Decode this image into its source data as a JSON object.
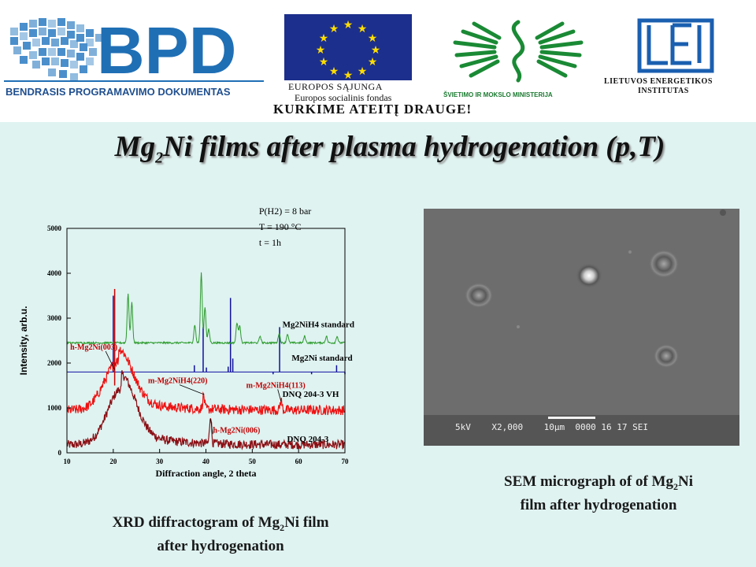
{
  "banner": {
    "bpd_logo_text": "BPD",
    "bpd_subtitle": "BENDRASIS PROGRAMAVIMO DOKUMENTAS",
    "eu_label_1": "EUROPOS SĄJUNGA",
    "eu_label_2": "Europos socialinis fondas",
    "eu_slogan": "KURKIME ATEITĮ DRAUGE!",
    "ministry_label": "ŠVIETIMO IR MOKSLO MINISTERIJA",
    "lei_label_1": "LIETUVOS ENERGETIKOS",
    "lei_label_2": "INSTITUTAS"
  },
  "slide": {
    "title_a": "Mg",
    "title_sub": "2",
    "title_b": "Ni films after plasma hydrogenation (p,T)",
    "xrd_caption_a": "XRD diffractogram of Mg",
    "xrd_caption_sub": "2",
    "xrd_caption_b": "Ni film",
    "xrd_caption_line2": "after hydrogenation",
    "sem_caption_a": "SEM micrograph of of Mg",
    "sem_caption_sub": "2",
    "sem_caption_b": "Ni",
    "sem_caption_line2": "film after hydrogenation",
    "sem_overlay": "5kV    X2,000    10μm  0000 16 17 SEI"
  },
  "colors": {
    "background": "#dff3f1",
    "blue_logo": "#1f6fb5",
    "green_logo": "#1a8a35",
    "eu_flag": "#1c2f8c",
    "eu_star": "#ffdd00",
    "red_series": "#ee1111",
    "darkred_series": "#8b0f14",
    "green_series": "#2a9a2a",
    "blue_series": "#1010a0"
  },
  "chart_data": {
    "type": "line",
    "xlabel": "Diffraction angle, 2 theta",
    "ylabel": "Intensity, arb.u.",
    "xlim": [
      10,
      70
    ],
    "ylim": [
      0,
      5000
    ],
    "xticks": [
      10,
      20,
      30,
      40,
      50,
      60,
      70
    ],
    "yticks": [
      0,
      1000,
      2000,
      3000,
      4000,
      5000
    ],
    "conditions": [
      "P(H2) = 8 bar",
      "T = 190 °C",
      "t = 1h"
    ],
    "series": [
      {
        "name": "Mg2NiH4 standard",
        "baseline": 2450,
        "peaks": [
          [
            23.2,
            1100
          ],
          [
            24.0,
            900
          ],
          [
            37.6,
            400
          ],
          [
            39.0,
            1550
          ],
          [
            39.8,
            800
          ],
          [
            40.6,
            300
          ],
          [
            46.7,
            450
          ],
          [
            47.3,
            400
          ],
          [
            51.7,
            150
          ],
          [
            55.8,
            220
          ],
          [
            57.6,
            200
          ],
          [
            61.3,
            150
          ],
          [
            66.0,
            150
          ],
          [
            68.3,
            150
          ]
        ]
      },
      {
        "name": "Mg2Ni standard",
        "baseline": 1800,
        "stick_peaks": [
          [
            20.0,
            1900
          ],
          [
            37.5,
            350
          ],
          [
            39.4,
            1200
          ],
          [
            40.1,
            300
          ],
          [
            44.8,
            320
          ],
          [
            45.3,
            1850
          ],
          [
            45.8,
            500
          ],
          [
            50.9,
            200
          ],
          [
            54.5,
            150
          ],
          [
            55.9,
            1200
          ],
          [
            57.3,
            200
          ],
          [
            62.8,
            150
          ],
          [
            66.1,
            200
          ],
          [
            68.2,
            350
          ],
          [
            70.0,
            150
          ]
        ]
      },
      {
        "name": "DNQ 204-3 VH",
        "baseline": 950,
        "hump": [
          21.2,
          1100
        ],
        "peaks": [
          [
            39.5,
            300
          ],
          [
            56.2,
            220
          ]
        ]
      },
      {
        "name": "DNQ 204-3",
        "baseline": 180,
        "hump": [
          21.8,
          1250
        ],
        "peaks": [
          [
            41.0,
            650
          ]
        ]
      }
    ],
    "annotations": [
      {
        "text": "h-Mg2Ni(003)",
        "x": 20.3,
        "y": 1850
      },
      {
        "text": "m-Mg2NiH4(220)",
        "x": 39.6,
        "y": 1300
      },
      {
        "text": "m-Mg2NiH4(113)",
        "x": 56.2,
        "y": 1150
      },
      {
        "text": "h-Mg2Ni(006)",
        "x": 41.0,
        "y": 750
      }
    ]
  }
}
